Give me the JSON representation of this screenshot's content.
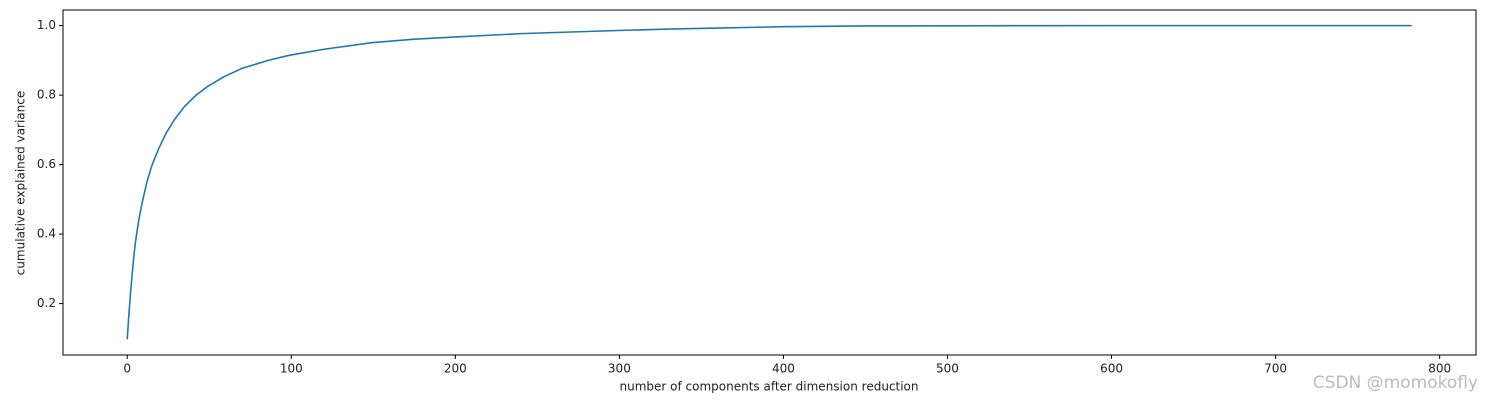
{
  "chart_data": {
    "type": "line",
    "xlabel": "number of components after dimension reduction",
    "ylabel": "cumulative explained variance",
    "annotation": "CSDN @momokofly",
    "series": [
      {
        "color": "#1f77b4",
        "x": [
          0,
          1,
          2,
          3,
          4,
          5,
          7,
          9,
          12,
          15,
          19,
          24,
          29,
          35,
          42,
          49,
          59,
          70,
          86,
          99,
          120,
          149,
          175,
          199,
          240,
          299,
          330,
          360,
          400,
          450,
          500,
          550,
          600,
          700,
          783
        ],
        "values": [
          0.097,
          0.168,
          0.23,
          0.284,
          0.334,
          0.377,
          0.44,
          0.488,
          0.55,
          0.597,
          0.644,
          0.693,
          0.731,
          0.768,
          0.8,
          0.825,
          0.853,
          0.877,
          0.9,
          0.915,
          0.932,
          0.951,
          0.961,
          0.967,
          0.977,
          0.986,
          0.99,
          0.993,
          0.997,
          0.999,
          0.9995,
          0.9998,
          1.0,
          1.0,
          1.0
        ]
      }
    ],
    "xlim": [
      -39.15,
      822.15
    ],
    "ylim": [
      0.052,
      1.045
    ],
    "xticks": [
      0,
      100,
      200,
      300,
      400,
      500,
      600,
      700,
      800
    ],
    "yticks": [
      0.2,
      0.4,
      0.6,
      0.8,
      {
        "value": 1.0,
        "label": "1.0"
      }
    ]
  }
}
